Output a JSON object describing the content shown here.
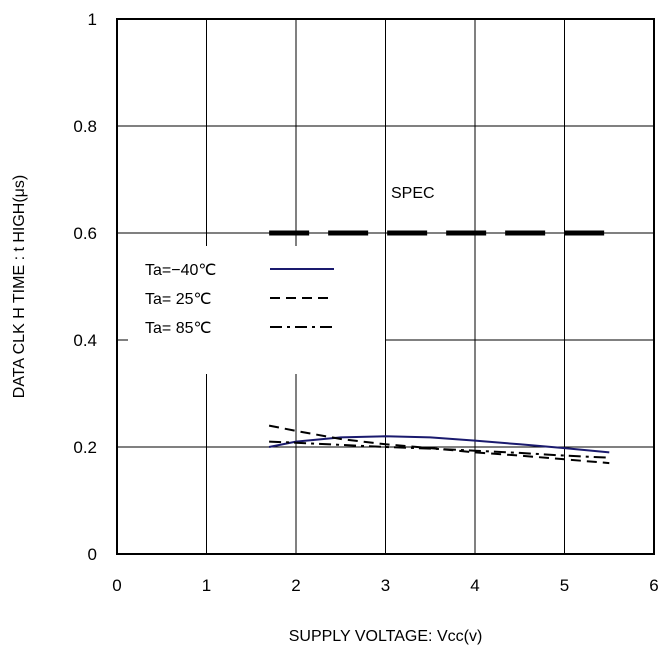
{
  "chart_data": {
    "type": "line",
    "title": "",
    "xlabel": "SUPPLY VOLTAGE: Vcc(v)",
    "ylabel": "DATA CLK H TIME : t  HIGH(μs)",
    "xlim": [
      0,
      6
    ],
    "ylim": [
      0,
      1
    ],
    "x_ticks": [
      "0",
      "1",
      "2",
      "3",
      "4",
      "5",
      "6"
    ],
    "y_ticks": [
      "0",
      "0.2",
      "0.4",
      "0.6",
      "0.8",
      "1"
    ],
    "grid": true,
    "legend_position": "left",
    "annotation": "SPEC",
    "spec": {
      "x": [
        1.7,
        5.5
      ],
      "y": 0.6
    },
    "series": [
      {
        "name": "Ta=−40℃",
        "style": "solid",
        "color": "#1a1a6e",
        "x": [
          1.7,
          2.0,
          2.5,
          3.0,
          3.5,
          4.0,
          4.5,
          5.0,
          5.5
        ],
        "y": [
          0.2,
          0.21,
          0.218,
          0.22,
          0.218,
          0.212,
          0.205,
          0.198,
          0.19
        ]
      },
      {
        "name": "Ta= 25℃",
        "style": "dashed",
        "color": "#000000",
        "x": [
          1.7,
          2.0,
          2.5,
          3.0,
          3.5,
          4.0,
          4.5,
          5.0,
          5.5
        ],
        "y": [
          0.24,
          0.23,
          0.215,
          0.205,
          0.198,
          0.19,
          0.184,
          0.177,
          0.17
        ]
      },
      {
        "name": "Ta= 85℃",
        "style": "dashdot",
        "color": "#000000",
        "x": [
          1.7,
          2.0,
          2.5,
          3.0,
          3.5,
          4.0,
          4.5,
          5.0,
          5.5
        ],
        "y": [
          0.21,
          0.208,
          0.204,
          0.2,
          0.197,
          0.193,
          0.189,
          0.184,
          0.18
        ]
      }
    ]
  }
}
